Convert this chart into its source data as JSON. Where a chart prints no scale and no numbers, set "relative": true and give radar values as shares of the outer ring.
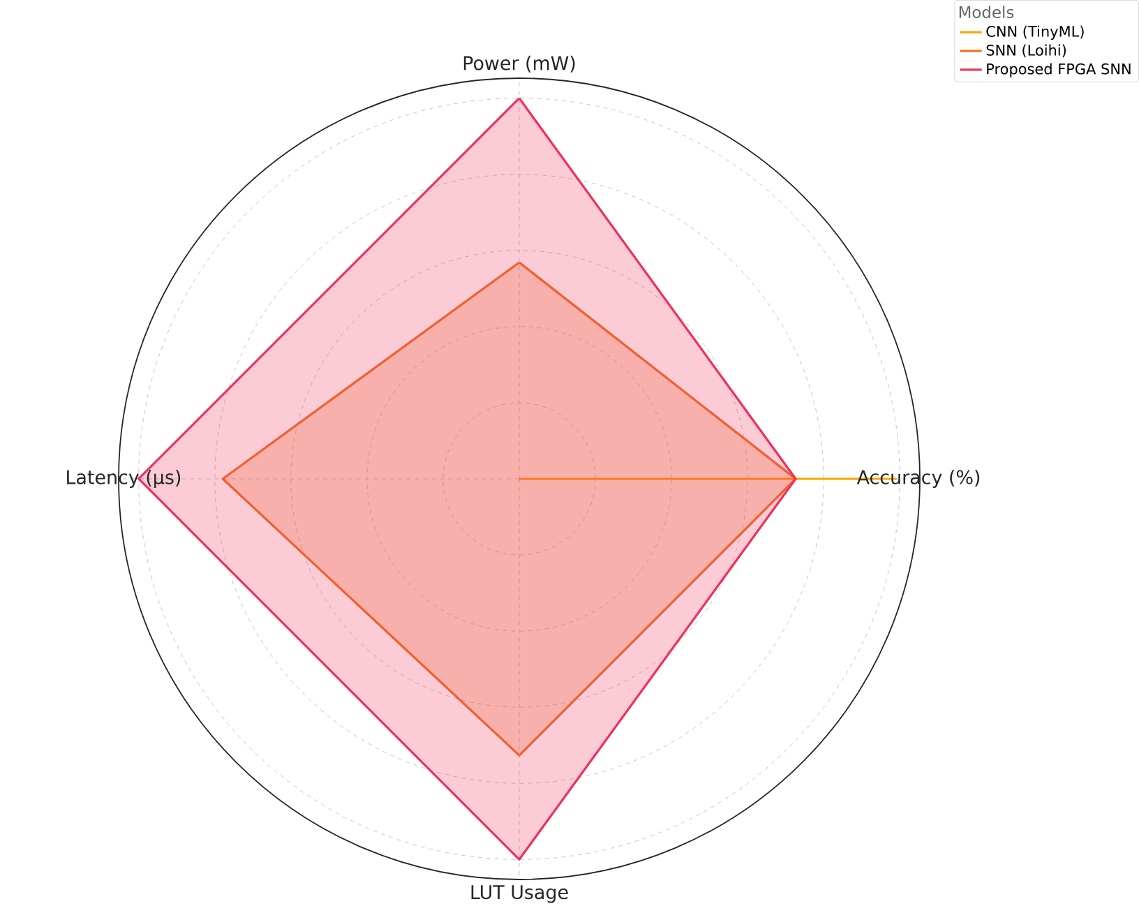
{
  "chart_data": {
    "type": "radar",
    "relative": true,
    "categories": [
      "Power (mW)",
      "Accuracy (%)",
      "LUT Usage",
      "Latency (μs)"
    ],
    "legend_title": "Models",
    "legend": "top right",
    "grid": true,
    "series": [
      {
        "name": "CNN (TinyML)",
        "color": "#ffa500",
        "values": [
          0,
          0.94,
          0,
          0
        ]
      },
      {
        "name": "SNN (Loihi)",
        "color": "#f07020",
        "values": [
          0.54,
          0.69,
          0.69,
          0.74
        ]
      },
      {
        "name": "Proposed FPGA SNN",
        "color": "#f0305a",
        "values": [
          0.95,
          0.69,
          0.95,
          0.95
        ]
      }
    ]
  }
}
